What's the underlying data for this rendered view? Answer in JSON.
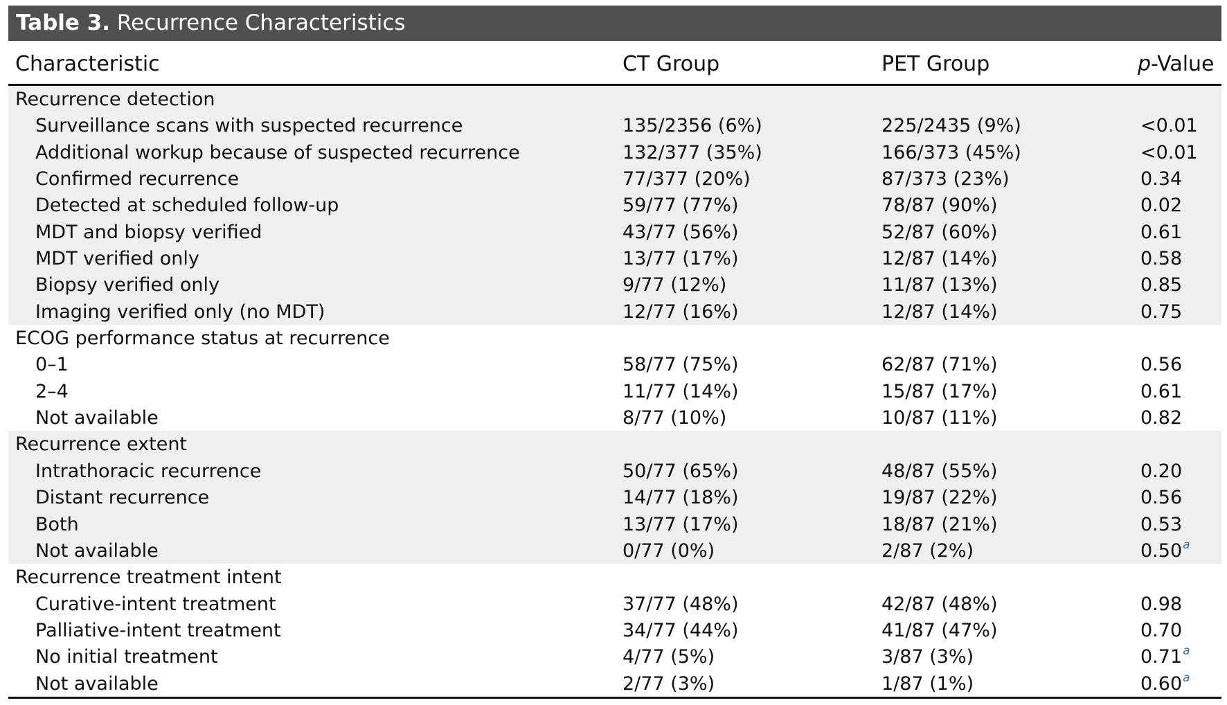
{
  "table": {
    "label": "Table 3.",
    "title": "Recurrence Characteristics",
    "columns": [
      "Characteristic",
      "CT Group",
      "PET Group",
      "Value"
    ],
    "pvalue_prefix": "p",
    "footnote_marker": "a",
    "groups": [
      {
        "heading": "Recurrence detection",
        "shaded": true,
        "rows": [
          {
            "label": "Surveillance scans with suspected recurrence",
            "ct": "135/2356 (6%)",
            "pet": "225/2435 (9%)",
            "p": "<0.01",
            "note": ""
          },
          {
            "label": "Additional workup because of suspected recurrence",
            "ct": "132/377 (35%)",
            "pet": "166/373 (45%)",
            "p": "<0.01",
            "note": ""
          },
          {
            "label": "Confirmed recurrence",
            "ct": "77/377 (20%)",
            "pet": "87/373 (23%)",
            "p": "0.34",
            "note": ""
          },
          {
            "label": "Detected at scheduled follow-up",
            "ct": "59/77 (77%)",
            "pet": "78/87 (90%)",
            "p": "0.02",
            "note": ""
          },
          {
            "label": "MDT and biopsy verified",
            "ct": "43/77 (56%)",
            "pet": "52/87 (60%)",
            "p": "0.61",
            "note": ""
          },
          {
            "label": "MDT verified only",
            "ct": "13/77 (17%)",
            "pet": "12/87 (14%)",
            "p": "0.58",
            "note": ""
          },
          {
            "label": "Biopsy verified only",
            "ct": "9/77 (12%)",
            "pet": "11/87 (13%)",
            "p": "0.85",
            "note": ""
          },
          {
            "label": "Imaging verified only (no MDT)",
            "ct": "12/77 (16%)",
            "pet": "12/87 (14%)",
            "p": "0.75",
            "note": ""
          }
        ]
      },
      {
        "heading": "ECOG performance status at recurrence",
        "shaded": false,
        "rows": [
          {
            "label": "0–1",
            "ct": "58/77 (75%)",
            "pet": "62/87 (71%)",
            "p": "0.56",
            "note": ""
          },
          {
            "label": "2–4",
            "ct": "11/77 (14%)",
            "pet": "15/87 (17%)",
            "p": "0.61",
            "note": ""
          },
          {
            "label": "Not available",
            "ct": "8/77 (10%)",
            "pet": "10/87 (11%)",
            "p": "0.82",
            "note": ""
          }
        ]
      },
      {
        "heading": "Recurrence extent",
        "shaded": true,
        "rows": [
          {
            "label": "Intrathoracic recurrence",
            "ct": "50/77 (65%)",
            "pet": "48/87 (55%)",
            "p": "0.20",
            "note": ""
          },
          {
            "label": "Distant recurrence",
            "ct": "14/77 (18%)",
            "pet": "19/87 (22%)",
            "p": "0.56",
            "note": ""
          },
          {
            "label": "Both",
            "ct": "13/77 (17%)",
            "pet": "18/87 (21%)",
            "p": "0.53",
            "note": ""
          },
          {
            "label": "Not available",
            "ct": "0/77 (0%)",
            "pet": "2/87 (2%)",
            "p": "0.50",
            "note": "a"
          }
        ]
      },
      {
        "heading": "Recurrence treatment intent",
        "shaded": false,
        "rows": [
          {
            "label": "Curative-intent treatment",
            "ct": "37/77 (48%)",
            "pet": "42/87 (48%)",
            "p": "0.98",
            "note": ""
          },
          {
            "label": "Palliative-intent treatment",
            "ct": "34/77 (44%)",
            "pet": "41/87 (47%)",
            "p": "0.70",
            "note": ""
          },
          {
            "label": "No initial treatment",
            "ct": "4/77 (5%)",
            "pet": "3/87 (3%)",
            "p": "0.71",
            "note": "a"
          },
          {
            "label": "Not available",
            "ct": "2/77 (3%)",
            "pet": "1/87 (1%)",
            "p": "0.60",
            "note": "a"
          }
        ]
      }
    ]
  }
}
